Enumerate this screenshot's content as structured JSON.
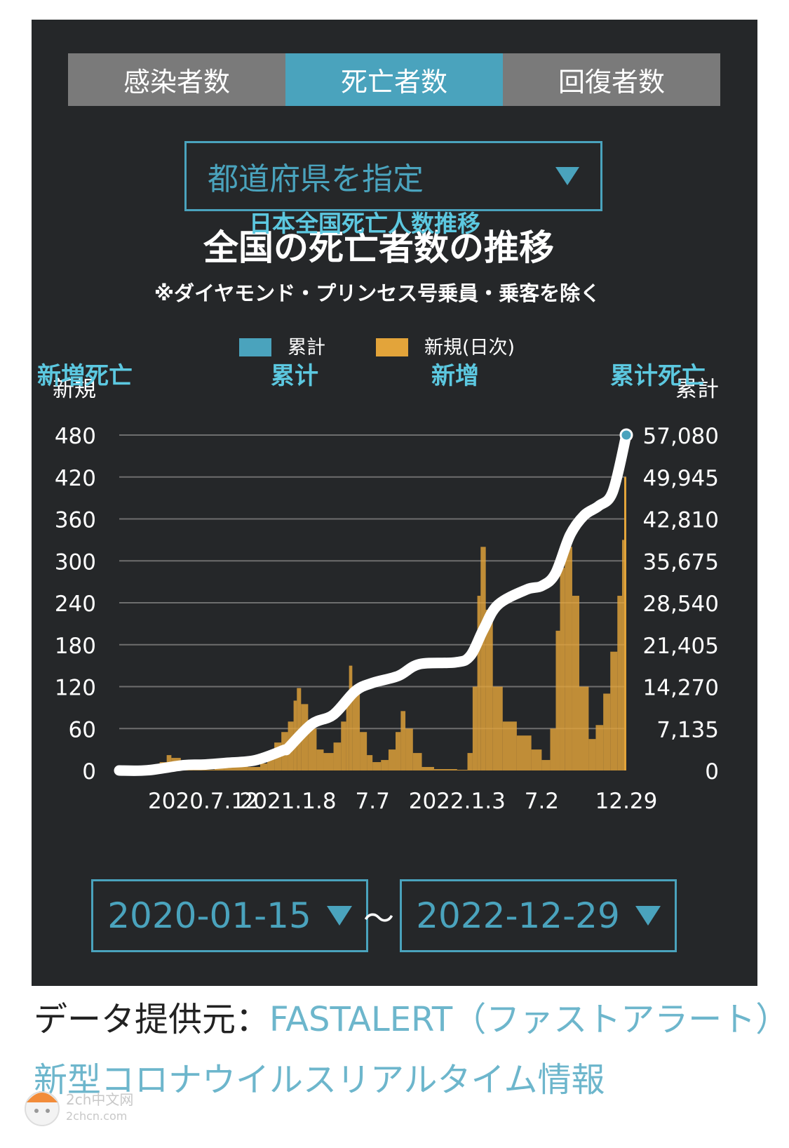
{
  "tabs": [
    {
      "label": "感染者数",
      "active": false
    },
    {
      "label": "死亡者数",
      "active": true
    },
    {
      "label": "回復者数",
      "active": false
    }
  ],
  "prefecture_select": {
    "label": "都道府県を指定"
  },
  "overlay": {
    "chart_title_cn": "日本全国死亡人数推移",
    "left_axis_cn": "新増死亡",
    "legend_cumulative_cn": "累计",
    "legend_daily_cn": "新增",
    "right_axis_cn": "累计死亡"
  },
  "chart_data": {
    "type": "bar+line",
    "title": "全国の死亡者数の推移",
    "subtitle": "※ダイヤモンド・プリンセス号乗員・乗客を除く",
    "legend": [
      {
        "name": "累計",
        "color": "#4aa3bd"
      },
      {
        "name": "新規(日次)",
        "color": "#e3a43a"
      }
    ],
    "y_left": {
      "label": "新規",
      "ticks": [
        "0",
        "60",
        "120",
        "180",
        "240",
        "300",
        "360",
        "420",
        "480"
      ],
      "range": [
        0,
        480
      ]
    },
    "y_right": {
      "label": "累計",
      "ticks": [
        "0",
        "7,135",
        "14,270",
        "21,405",
        "28,540",
        "35,675",
        "42,810",
        "49,945",
        "57,080"
      ],
      "range": [
        0,
        57080
      ]
    },
    "x_ticks": [
      {
        "label": "2020.7.12",
        "date": "2020-07-12"
      },
      {
        "label": "2021.1.8",
        "date": "2021-01-08"
      },
      {
        "label": "7.7",
        "date": "2021-07-07"
      },
      {
        "label": "2022.1.3",
        "date": "2022-01-03"
      },
      {
        "label": "7.2",
        "date": "2022-07-02"
      },
      {
        "label": "12.29",
        "date": "2022-12-29"
      }
    ],
    "x_range": [
      "2020-01-15",
      "2022-12-29"
    ],
    "series": [
      {
        "name": "新規(日次)",
        "type": "bar",
        "axis": "left",
        "points": [
          [
            "2020-01-15",
            0
          ],
          [
            "2020-03-01",
            1
          ],
          [
            "2020-04-10",
            12
          ],
          [
            "2020-04-25",
            22
          ],
          [
            "2020-05-05",
            18
          ],
          [
            "2020-05-25",
            3
          ],
          [
            "2020-06-20",
            1
          ],
          [
            "2020-07-12",
            1
          ],
          [
            "2020-08-05",
            8
          ],
          [
            "2020-08-25",
            14
          ],
          [
            "2020-09-15",
            7
          ],
          [
            "2020-10-15",
            5
          ],
          [
            "2020-11-10",
            10
          ],
          [
            "2020-11-25",
            25
          ],
          [
            "2020-12-10",
            40
          ],
          [
            "2020-12-25",
            55
          ],
          [
            "2021-01-08",
            70
          ],
          [
            "2021-01-20",
            100
          ],
          [
            "2021-01-27",
            118
          ],
          [
            "2021-02-05",
            95
          ],
          [
            "2021-02-20",
            60
          ],
          [
            "2021-03-10",
            30
          ],
          [
            "2021-03-25",
            25
          ],
          [
            "2021-04-15",
            40
          ],
          [
            "2021-05-01",
            70
          ],
          [
            "2021-05-12",
            110
          ],
          [
            "2021-05-18",
            150
          ],
          [
            "2021-05-25",
            120
          ],
          [
            "2021-06-10",
            55
          ],
          [
            "2021-06-25",
            22
          ],
          [
            "2021-07-07",
            12
          ],
          [
            "2021-07-25",
            15
          ],
          [
            "2021-08-10",
            30
          ],
          [
            "2021-08-25",
            55
          ],
          [
            "2021-09-05",
            85
          ],
          [
            "2021-09-15",
            60
          ],
          [
            "2021-10-01",
            25
          ],
          [
            "2021-10-20",
            5
          ],
          [
            "2021-11-15",
            2
          ],
          [
            "2022-01-03",
            1
          ],
          [
            "2022-01-25",
            25
          ],
          [
            "2022-02-05",
            120
          ],
          [
            "2022-02-15",
            250
          ],
          [
            "2022-02-22",
            320
          ],
          [
            "2022-03-05",
            230
          ],
          [
            "2022-03-20",
            120
          ],
          [
            "2022-04-10",
            70
          ],
          [
            "2022-05-10",
            50
          ],
          [
            "2022-06-10",
            30
          ],
          [
            "2022-07-02",
            15
          ],
          [
            "2022-07-20",
            60
          ],
          [
            "2022-08-01",
            200
          ],
          [
            "2022-08-10",
            290
          ],
          [
            "2022-08-20",
            320
          ],
          [
            "2022-09-05",
            250
          ],
          [
            "2022-09-20",
            120
          ],
          [
            "2022-10-10",
            45
          ],
          [
            "2022-10-25",
            65
          ],
          [
            "2022-11-10",
            110
          ],
          [
            "2022-11-25",
            170
          ],
          [
            "2022-12-10",
            250
          ],
          [
            "2022-12-20",
            330
          ],
          [
            "2022-12-27",
            380
          ],
          [
            "2022-12-29",
            420
          ]
        ]
      },
      {
        "name": "累計",
        "type": "line",
        "axis": "right",
        "points": [
          [
            "2020-01-15",
            0
          ],
          [
            "2020-03-15",
            30
          ],
          [
            "2020-05-31",
            900
          ],
          [
            "2020-07-12",
            1000
          ],
          [
            "2020-08-31",
            1300
          ],
          [
            "2020-10-31",
            1750
          ],
          [
            "2020-12-31",
            3500
          ],
          [
            "2021-01-08",
            3800
          ],
          [
            "2021-02-28",
            7900
          ],
          [
            "2021-04-15",
            9500
          ],
          [
            "2021-05-31",
            13500
          ],
          [
            "2021-07-07",
            14900
          ],
          [
            "2021-08-31",
            16100
          ],
          [
            "2021-10-15",
            18100
          ],
          [
            "2021-12-31",
            18400
          ],
          [
            "2022-01-31",
            19500
          ],
          [
            "2022-02-28",
            24000
          ],
          [
            "2022-03-31",
            28200
          ],
          [
            "2022-05-31",
            30800
          ],
          [
            "2022-07-02",
            31400
          ],
          [
            "2022-07-31",
            33500
          ],
          [
            "2022-08-31",
            40000
          ],
          [
            "2022-09-30",
            43400
          ],
          [
            "2022-10-31",
            45000
          ],
          [
            "2022-11-30",
            47400
          ],
          [
            "2022-12-29",
            57080
          ]
        ]
      }
    ]
  },
  "date_range": {
    "start": "2020-01-15",
    "separator": "〜",
    "end": "2022-12-29"
  },
  "source": {
    "label": "データ提供元：",
    "link": "FASTALERT（ファストアラート）新型コロナウイルスリアルタイム情報"
  },
  "watermark": {
    "text1": "2ch中文网",
    "text2": "2chcn.com"
  },
  "colors": {
    "panel": "#252729",
    "accent": "#4aa3bd",
    "bar": "#e3a43a",
    "overlay": "#5cc8e0"
  }
}
